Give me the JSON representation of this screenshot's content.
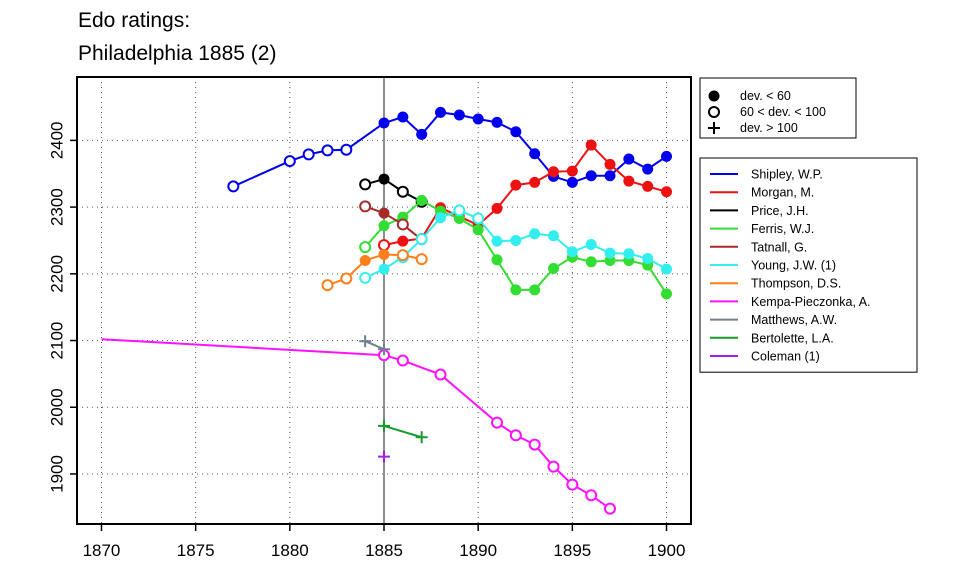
{
  "title_line1": "Edo ratings:",
  "title_line2": "Philadelphia 1885 (2)",
  "chart_data": {
    "type": "line",
    "title": "Edo ratings: Philadelphia 1885 (2)",
    "xlim": [
      1868.7,
      1901.3
    ],
    "ylim": [
      1825,
      2495
    ],
    "x_ticks": [
      1870,
      1875,
      1880,
      1885,
      1890,
      1895,
      1900
    ],
    "y_ticks": [
      1900,
      2000,
      2100,
      2200,
      2300,
      2400
    ],
    "grid": true,
    "reference_line_x": 1885,
    "legend_position": "right",
    "marker_legend": [
      {
        "marker": "filled",
        "label": "dev. < 60"
      },
      {
        "marker": "open",
        "label": "60 < dev. < 100"
      },
      {
        "marker": "plus",
        "label": "dev. > 100"
      }
    ],
    "series": [
      {
        "name": "Shipley, W.P.",
        "color": "#0000ee",
        "x": [
          1877,
          1880,
          1881,
          1882,
          1883,
          1885,
          1886,
          1887,
          1888,
          1889,
          1890,
          1891,
          1892,
          1893,
          1894,
          1895,
          1896,
          1897,
          1898,
          1899,
          1900
        ],
        "y": [
          2331,
          2369,
          2379,
          2385,
          2386,
          2426,
          2435,
          2409,
          2442,
          2438,
          2432,
          2427,
          2413,
          2380,
          2346,
          2337,
          2347,
          2347,
          2372,
          2357,
          2376
        ],
        "markers": [
          "open",
          "open",
          "open",
          "open",
          "open",
          "filled",
          "filled",
          "filled",
          "filled",
          "filled",
          "filled",
          "filled",
          "filled",
          "filled",
          "filled",
          "filled",
          "filled",
          "filled",
          "filled",
          "filled",
          "filled"
        ]
      },
      {
        "name": "Morgan, M.",
        "color": "#ee1111",
        "x": [
          1885,
          1886,
          1887,
          1888,
          1889,
          1890,
          1891,
          1892,
          1893,
          1894,
          1895,
          1896,
          1897,
          1898,
          1899,
          1900
        ],
        "y": [
          2243,
          2249,
          2253,
          2299,
          2286,
          2273,
          2298,
          2333,
          2337,
          2353,
          2354,
          2393,
          2364,
          2339,
          2331,
          2323
        ],
        "markers": [
          "open",
          "filled",
          "filled",
          "filled",
          "filled",
          "filled",
          "filled",
          "filled",
          "filled",
          "filled",
          "filled",
          "filled",
          "filled",
          "filled",
          "filled",
          "filled"
        ]
      },
      {
        "name": "Price, J.H.",
        "color": "#000000",
        "x": [
          1884,
          1885,
          1886,
          1887
        ],
        "y": [
          2334,
          2342,
          2323,
          2308
        ],
        "markers": [
          "open",
          "filled",
          "open",
          "open"
        ]
      },
      {
        "name": "Ferris, W.J.",
        "color": "#33dd33",
        "x": [
          1884,
          1885,
          1886,
          1887,
          1888,
          1889,
          1890,
          1891,
          1892,
          1893,
          1894,
          1895,
          1896,
          1897,
          1898,
          1899,
          1900
        ],
        "y": [
          2240,
          2272,
          2285,
          2310,
          2294,
          2283,
          2266,
          2221,
          2176,
          2176,
          2208,
          2225,
          2218,
          2220,
          2220,
          2213,
          2170
        ],
        "markers": [
          "open",
          "filled",
          "filled",
          "filled",
          "filled",
          "filled",
          "filled",
          "filled",
          "filled",
          "filled",
          "filled",
          "filled",
          "filled",
          "filled",
          "filled",
          "filled",
          "filled"
        ]
      },
      {
        "name": "Tatnall, G.",
        "color": "#a52a2a",
        "x": [
          1884,
          1885,
          1886,
          1887
        ],
        "y": [
          2301,
          2291,
          2274,
          2251
        ],
        "markers": [
          "open",
          "filled",
          "open",
          "filled"
        ]
      },
      {
        "name": "Young, J.W. (1)",
        "color": "#33eeee",
        "x": [
          1884,
          1885,
          1886,
          1887,
          1888,
          1889,
          1890,
          1891,
          1892,
          1893,
          1894,
          1895,
          1896,
          1897,
          1898,
          1899,
          1900
        ],
        "y": [
          2194,
          2207,
          2225,
          2252,
          2284,
          2295,
          2283,
          2249,
          2250,
          2260,
          2257,
          2233,
          2244,
          2231,
          2230,
          2223,
          2207
        ],
        "markers": [
          "open",
          "filled",
          "open",
          "open",
          "filled",
          "open",
          "open",
          "filled",
          "filled",
          "filled",
          "filled",
          "filled",
          "filled",
          "filled",
          "filled",
          "filled",
          "filled"
        ]
      },
      {
        "name": "Thompson, D.S.",
        "color": "#ff7f1a",
        "x": [
          1882,
          1883,
          1884,
          1885,
          1886,
          1887
        ],
        "y": [
          2183,
          2193,
          2220,
          2229,
          2228,
          2222
        ],
        "markers": [
          "open",
          "open",
          "filled",
          "filled",
          "open",
          "open"
        ]
      },
      {
        "name": "Kempa-Pieczonka, A.",
        "color": "#ff11ff",
        "x": [
          1870,
          1885,
          1886,
          1888,
          1891,
          1892,
          1893,
          1894,
          1895,
          1896,
          1897
        ],
        "y": [
          2102,
          2078,
          2070,
          2049,
          1977,
          1958,
          1944,
          1911,
          1884,
          1868,
          1848
        ],
        "markers": [
          "none",
          "open",
          "open",
          "open",
          "open",
          "open",
          "open",
          "open",
          "open",
          "open",
          "open"
        ]
      },
      {
        "name": "Matthews, A.W.",
        "color": "#708090",
        "x": [
          1884,
          1885
        ],
        "y": [
          2099,
          2087
        ],
        "markers": [
          "plus",
          "plus"
        ]
      },
      {
        "name": "Bertolette, L.A.",
        "color": "#1a9a2a",
        "x": [
          1885,
          1887
        ],
        "y": [
          1972,
          1955
        ],
        "markers": [
          "plus",
          "plus"
        ]
      },
      {
        "name": "Coleman (1)",
        "color": "#a020f0",
        "x": [
          1885
        ],
        "y": [
          1926
        ],
        "markers": [
          "plus"
        ]
      }
    ]
  }
}
